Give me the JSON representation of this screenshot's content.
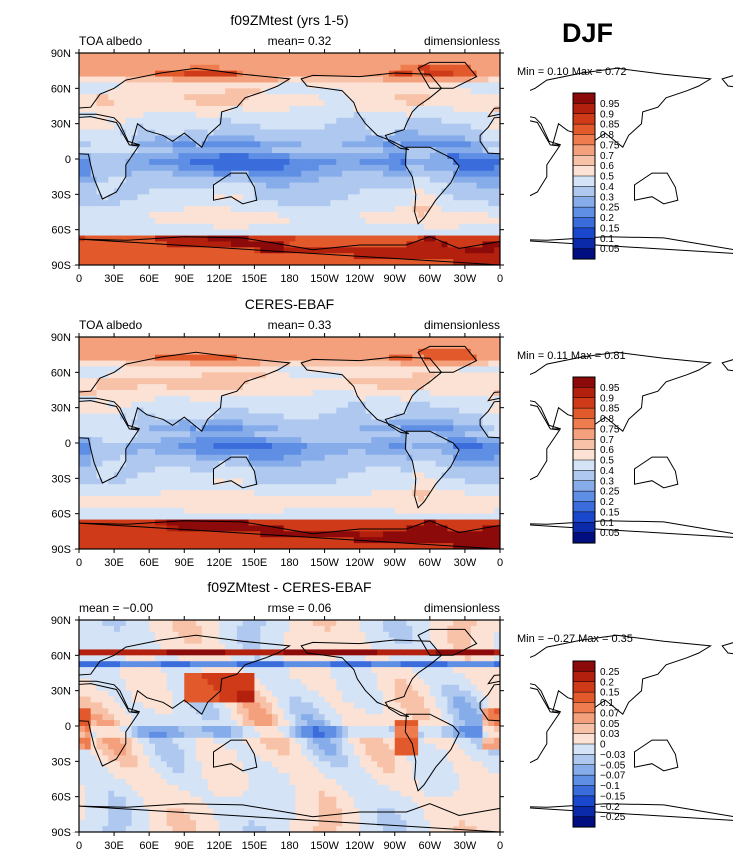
{
  "season": "DJF",
  "chart_data": [
    {
      "type": "heatmap",
      "title": "f09ZMtest (yrs 1-5)",
      "left_label": "TOA albedo",
      "center_label": "mean=",
      "center_value": "0.32",
      "right_label": "dimensionless",
      "stats": {
        "min_label": "Min =",
        "min": "0.10",
        "max_label": "Max =",
        "max": "0.72"
      },
      "lat_ticks": [
        "90N",
        "60N",
        "30N",
        "0",
        "30S",
        "60S",
        "90S"
      ],
      "lon_ticks": [
        "0",
        "30E",
        "60E",
        "90E",
        "120E",
        "150E",
        "180",
        "150W",
        "120W",
        "90W",
        "60W",
        "30W",
        "0"
      ],
      "colorbar_labels": [
        "0.95",
        "0.9",
        "0.85",
        "0.8",
        "0.75",
        "0.7",
        "0.6",
        "0.5",
        "0.4",
        "0.3",
        "0.25",
        "0.2",
        "0.15",
        "0.1",
        "0.05"
      ],
      "colorbar_colors": [
        "#8c0a0a",
        "#b3200e",
        "#cf3a18",
        "#e25a2c",
        "#ef7c4e",
        "#f5a07c",
        "#f8c2a8",
        "#fbe2d4",
        "#d4e3f6",
        "#aec8ef",
        "#86acea",
        "#5f8fe4",
        "#3a6cdc",
        "#1a48cc",
        "#0a2aaa",
        "#000e80"
      ],
      "fields": {
        "base": 0.42,
        "tropics_dip": -0.22,
        "storm_boost": 0.1,
        "pole_boost": 0.42,
        "north_ice": 0.32,
        "land_offset": 0.1,
        "diff_mode": false
      }
    },
    {
      "type": "heatmap",
      "title": "CERES-EBAF",
      "left_label": "TOA albedo",
      "center_label": "mean=",
      "center_value": "0.33",
      "right_label": "dimensionless",
      "stats": {
        "min_label": "Min =",
        "min": "0.11",
        "max_label": "Max =",
        "max": "0.81"
      },
      "lat_ticks": [
        "90N",
        "60N",
        "30N",
        "0",
        "30S",
        "60S",
        "90S"
      ],
      "lon_ticks": [
        "0",
        "30E",
        "60E",
        "90E",
        "120E",
        "150E",
        "180",
        "150W",
        "120W",
        "90W",
        "60W",
        "30W",
        "0"
      ],
      "colorbar_labels": [
        "0.95",
        "0.9",
        "0.85",
        "0.8",
        "0.75",
        "0.7",
        "0.6",
        "0.5",
        "0.4",
        "0.3",
        "0.25",
        "0.2",
        "0.15",
        "0.1",
        "0.05"
      ],
      "colorbar_colors": [
        "#8c0a0a",
        "#b3200e",
        "#cf3a18",
        "#e25a2c",
        "#ef7c4e",
        "#f5a07c",
        "#f8c2a8",
        "#fbe2d4",
        "#d4e3f6",
        "#aec8ef",
        "#86acea",
        "#5f8fe4",
        "#3a6cdc",
        "#1a48cc",
        "#0a2aaa",
        "#000e80"
      ],
      "fields": {
        "base": 0.43,
        "tropics_dip": -0.2,
        "storm_boost": 0.12,
        "pole_boost": 0.44,
        "north_ice": 0.3,
        "land_offset": 0.09,
        "diff_mode": false
      }
    },
    {
      "type": "heatmap",
      "title": "f09ZMtest - CERES-EBAF",
      "left_label": "mean =",
      "left_value": "-0.00",
      "center_label": "rmse =",
      "center_value": "0.06",
      "right_label": "dimensionless",
      "stats": {
        "min_label": "Min =",
        "min": "-0.27",
        "max_label": "Max =",
        "max": "0.35"
      },
      "lat_ticks": [
        "90N",
        "60N",
        "30N",
        "0",
        "30S",
        "60S",
        "90S"
      ],
      "lon_ticks": [
        "0",
        "30E",
        "60E",
        "90E",
        "120E",
        "150E",
        "180",
        "150W",
        "120W",
        "90W",
        "60W",
        "30W",
        "0"
      ],
      "colorbar_labels": [
        "0.25",
        "0.2",
        "0.15",
        "0.1",
        "0.07",
        "0.05",
        "0.03",
        "0",
        "-0.03",
        "-0.05",
        "-0.07",
        "-0.1",
        "-0.15",
        "-0.2",
        "-0.25"
      ],
      "colorbar_colors": [
        "#8c0a0a",
        "#b3200e",
        "#cf3a18",
        "#e25a2c",
        "#ef7c4e",
        "#f5a07c",
        "#f8c2a8",
        "#fbe2d4",
        "#d4e3f6",
        "#aec8ef",
        "#86acea",
        "#5f8fe4",
        "#3a6cdc",
        "#1a48cc",
        "#0a2aaa",
        "#000e80"
      ],
      "fields": {
        "base": 0.0,
        "tropics_dip": 0.0,
        "storm_boost": 0.0,
        "pole_boost": 0.0,
        "north_ice": 0.0,
        "land_offset": 0.0,
        "diff_mode": true
      }
    }
  ]
}
